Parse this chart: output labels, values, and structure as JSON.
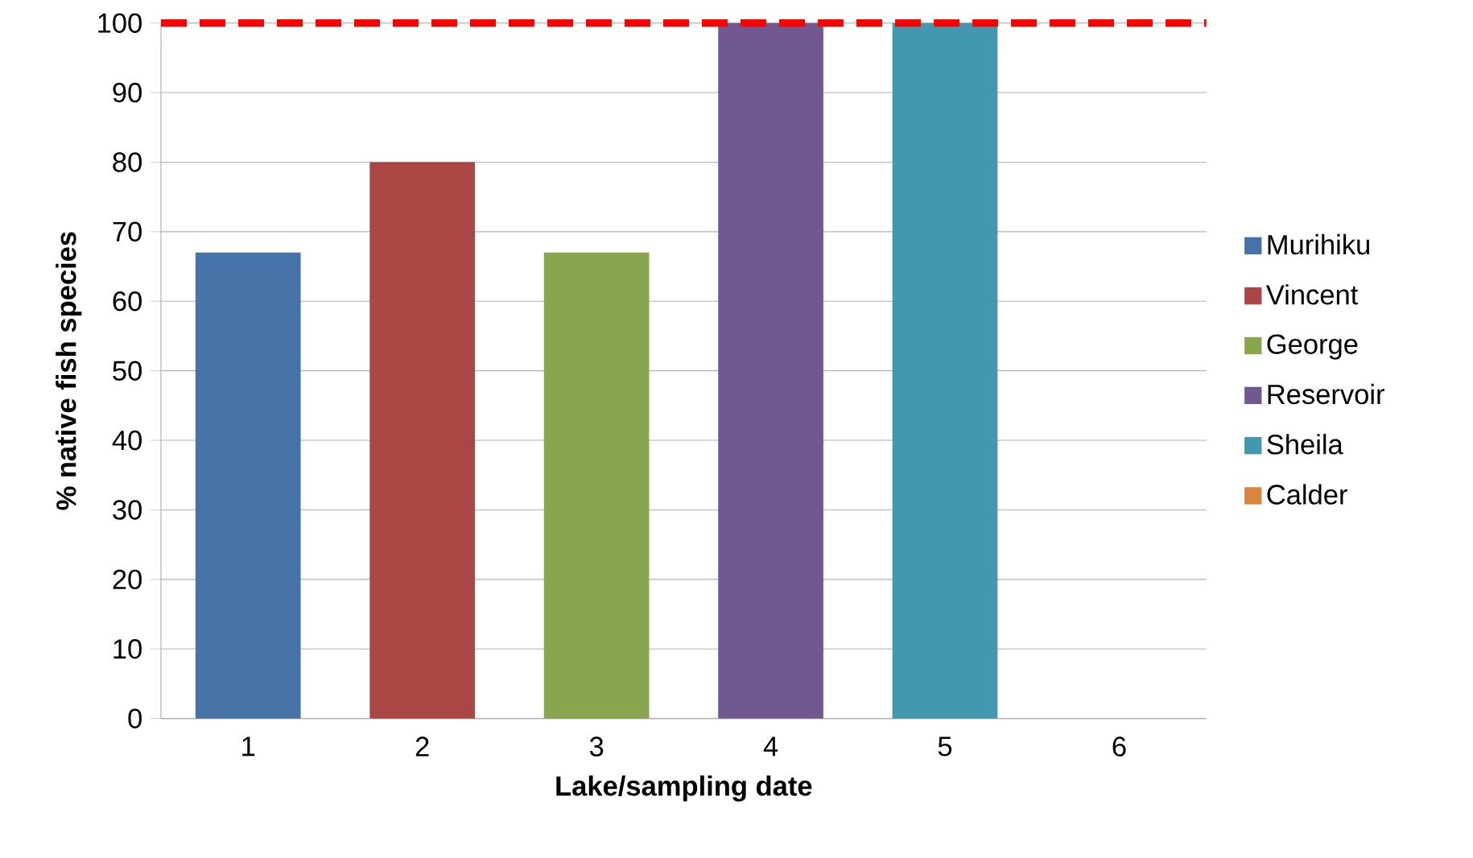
{
  "chart_data": {
    "type": "bar",
    "xlabel": "Lake/sampling date",
    "ylabel": "% native fish species",
    "categories": [
      "1",
      "2",
      "3",
      "4",
      "5",
      "6"
    ],
    "series": [
      {
        "name": "Murihiku",
        "color": "#4572a7",
        "values": [
          67,
          null,
          null,
          null,
          null,
          null
        ]
      },
      {
        "name": "Vincent",
        "color": "#aa4643",
        "values": [
          null,
          80,
          null,
          null,
          null,
          null
        ]
      },
      {
        "name": "George",
        "color": "#89a54e",
        "values": [
          null,
          null,
          67,
          null,
          null,
          null
        ]
      },
      {
        "name": "Reservoir",
        "color": "#71588f",
        "values": [
          null,
          null,
          null,
          100,
          null,
          null
        ]
      },
      {
        "name": "Sheila",
        "color": "#4198af",
        "values": [
          null,
          null,
          null,
          null,
          100,
          null
        ]
      },
      {
        "name": "Calder",
        "color": "#db843d",
        "values": [
          null,
          null,
          null,
          null,
          null,
          0
        ]
      }
    ],
    "ylim": [
      0,
      100
    ],
    "yticks": [
      0,
      10,
      20,
      30,
      40,
      50,
      60,
      70,
      80,
      90,
      100
    ],
    "grid": "y",
    "legend": "right",
    "ref_lines": [
      {
        "axis": "y",
        "value": 100,
        "color": "#ff0000",
        "line_style": "dashed"
      }
    ]
  }
}
